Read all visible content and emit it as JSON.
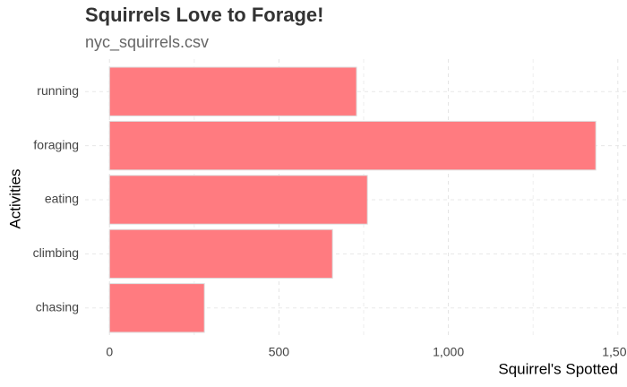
{
  "chart_data": {
    "type": "hbar",
    "title": "Squirrels Love to Forage!",
    "subtitle": "nyc_squirrels.csv",
    "x_label": "Squirrel's Spotted",
    "y_label": "Activities",
    "categories": [
      "running",
      "foraging",
      "eating",
      "climbing",
      "chasing"
    ],
    "values": [
      729,
      1435,
      761,
      658,
      280
    ],
    "color": "#ff7b80",
    "xlim": [
      -72,
      1527
    ],
    "xticks": [
      0,
      500,
      {
        "value": 1000,
        "label": "1,000"
      },
      {
        "value": 1500,
        "label": "1,500"
      }
    ],
    "x_minor_ticks": [
      250,
      750,
      1250
    ],
    "grid": true
  }
}
